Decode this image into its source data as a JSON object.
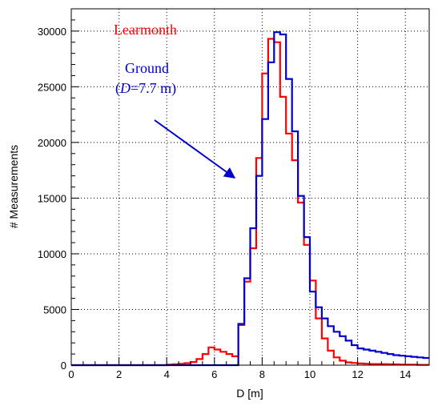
{
  "chart_data": {
    "type": "histogram",
    "xlabel": "D [m]",
    "ylabel": "# Measurements",
    "xlim": [
      0,
      15
    ],
    "ylim": [
      0,
      32000
    ],
    "x_ticks": [
      0,
      2,
      4,
      6,
      8,
      10,
      12,
      14
    ],
    "y_ticks": [
      0,
      5000,
      10000,
      15000,
      20000,
      25000,
      30000
    ],
    "grid": true,
    "bin_width": 0.25,
    "series": [
      {
        "name": "Learmonth",
        "color": "#ff0000",
        "values": [
          0,
          0,
          0,
          0,
          0,
          0,
          0,
          0,
          0,
          0,
          0,
          0,
          0,
          0,
          0,
          0,
          50,
          80,
          120,
          180,
          280,
          550,
          1000,
          1600,
          1400,
          1200,
          1000,
          800,
          3600,
          7500,
          10500,
          18600,
          26200,
          29300,
          29000,
          24100,
          20800,
          18400,
          14600,
          10800,
          7600,
          4200,
          2400,
          1300,
          700,
          400,
          250,
          200,
          150,
          130,
          100,
          100,
          90,
          80,
          70,
          60,
          50,
          40,
          30,
          30
        ]
      },
      {
        "name": "Ground",
        "color": "#0000cc",
        "values": [
          0,
          0,
          0,
          0,
          0,
          0,
          0,
          0,
          0,
          0,
          0,
          0,
          0,
          0,
          0,
          0,
          0,
          0,
          0,
          0,
          0,
          0,
          0,
          0,
          0,
          0,
          0,
          0,
          3700,
          7800,
          12300,
          17000,
          22100,
          27200,
          29900,
          29700,
          25700,
          21000,
          15200,
          11500,
          6600,
          5200,
          4200,
          3500,
          3000,
          2600,
          2200,
          1800,
          1500,
          1400,
          1300,
          1200,
          1100,
          1000,
          900,
          850,
          800,
          750,
          700,
          650
        ]
      }
    ],
    "annotations": {
      "learmonth_label": "Learmonth",
      "ground_label": "Ground",
      "ground_sub": "(D=7.7 m)",
      "ground_sub_prefix": "(",
      "ground_sub_var": "D",
      "ground_sub_rest": "=7.7 m)"
    }
  }
}
